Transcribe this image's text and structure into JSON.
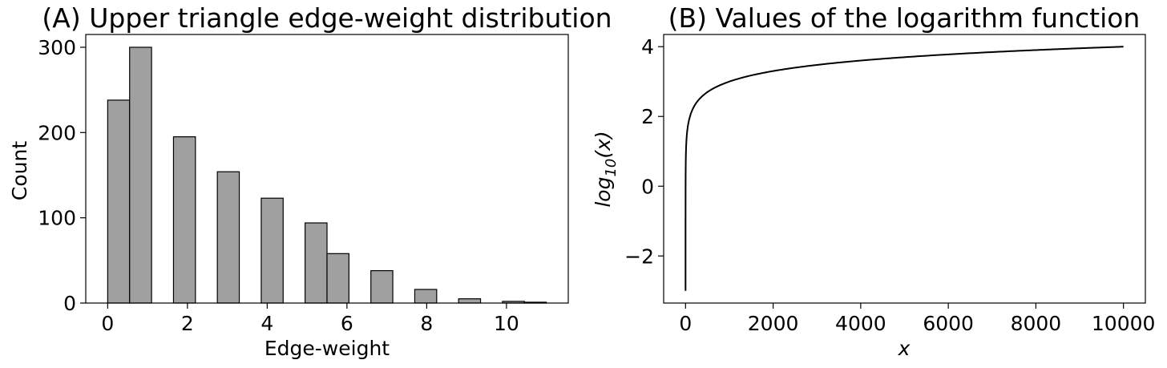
{
  "chart_data": [
    {
      "type": "bar",
      "title": "(A) Upper triangle edge-weight distribution",
      "xlabel": "Edge-weight",
      "ylabel": "Count",
      "xlim": [
        -0.55,
        11.55
      ],
      "ylim": [
        0,
        315
      ],
      "xticks": [
        0,
        2,
        4,
        6,
        8,
        10
      ],
      "yticks": [
        0,
        100,
        200,
        300
      ],
      "bar_color": "#a0a0a0",
      "edge_color": "#000000",
      "bins": [
        {
          "x0": 0.0,
          "x1": 0.55,
          "count": 238
        },
        {
          "x0": 0.55,
          "x1": 1.1,
          "count": 300
        },
        {
          "x0": 1.65,
          "x1": 2.2,
          "count": 195
        },
        {
          "x0": 2.75,
          "x1": 3.3,
          "count": 154
        },
        {
          "x0": 3.85,
          "x1": 4.4,
          "count": 123
        },
        {
          "x0": 4.95,
          "x1": 5.5,
          "count": 94
        },
        {
          "x0": 5.5,
          "x1": 6.05,
          "count": 58
        },
        {
          "x0": 6.6,
          "x1": 7.15,
          "count": 38
        },
        {
          "x0": 7.7,
          "x1": 8.25,
          "count": 16
        },
        {
          "x0": 8.8,
          "x1": 9.35,
          "count": 5
        },
        {
          "x0": 9.9,
          "x1": 10.45,
          "count": 2
        },
        {
          "x0": 10.45,
          "x1": 11.0,
          "count": 1
        }
      ]
    },
    {
      "type": "line",
      "title": "(B) Values of the logarithm function",
      "xlabel": "x",
      "ylabel": "log10(x)",
      "function": "log10",
      "x_domain": [
        0.001,
        10000
      ],
      "xlim": [
        -500,
        10500
      ],
      "ylim": [
        -3.35,
        4.35
      ],
      "xticks": [
        0,
        2000,
        4000,
        6000,
        8000,
        10000
      ],
      "yticks": [
        -2,
        0,
        2,
        4
      ],
      "line_color": "#000000"
    }
  ]
}
